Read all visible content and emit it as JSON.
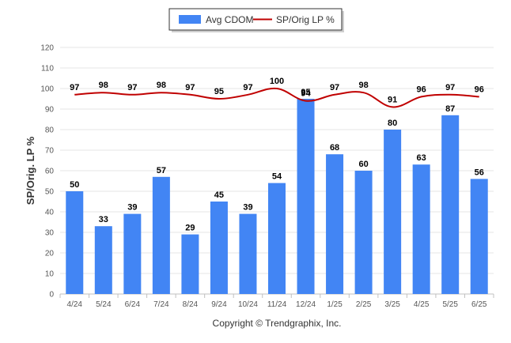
{
  "chart_data": {
    "type": "bar",
    "categories": [
      "4/24",
      "5/24",
      "6/24",
      "7/24",
      "8/24",
      "9/24",
      "10/24",
      "11/24",
      "12/24",
      "1/25",
      "2/25",
      "3/25",
      "4/25",
      "5/25",
      "6/25"
    ],
    "series": [
      {
        "name": "Avg CDOM",
        "type": "bar",
        "color": "#4285f4",
        "values": [
          50,
          33,
          39,
          57,
          29,
          45,
          39,
          54,
          95,
          68,
          60,
          80,
          63,
          87,
          56
        ]
      },
      {
        "name": "SP/Orig LP %",
        "type": "line",
        "color": "#c00000",
        "values": [
          97,
          98,
          97,
          98,
          97,
          95,
          97,
          100,
          94,
          97,
          98,
          91,
          96,
          97,
          96
        ]
      }
    ],
    "ylabel": "SP/Orig. LP %",
    "ylim": [
      0,
      120
    ],
    "yticks": [
      0,
      10,
      20,
      30,
      40,
      50,
      60,
      70,
      80,
      90,
      100,
      110,
      120
    ],
    "grid": true,
    "legend": "top-center"
  },
  "footer": {
    "copyright": "Copyright © Trendgraphix, Inc."
  }
}
